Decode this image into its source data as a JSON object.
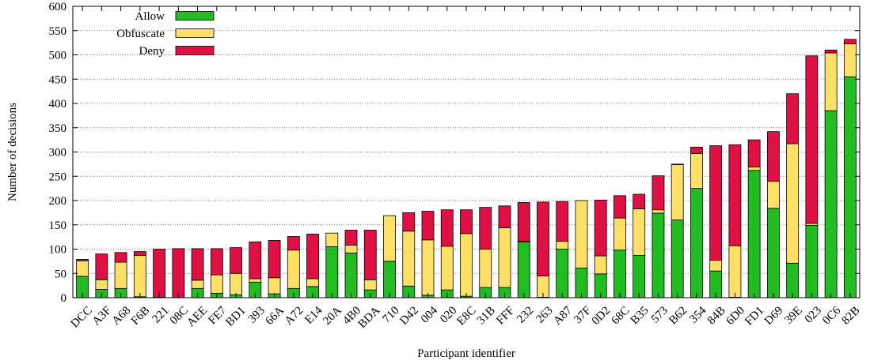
{
  "chart_data": {
    "type": "bar",
    "stacked": true,
    "title": "",
    "xlabel": "Participant identifier",
    "ylabel": "Number of decisions",
    "ylim": [
      0,
      600
    ],
    "yticks": [
      0,
      50,
      100,
      150,
      200,
      250,
      300,
      350,
      400,
      450,
      500,
      550,
      600
    ],
    "grid": "horizontal dotted",
    "legend_position": "top-left",
    "categories": [
      "DCC",
      "A3F",
      "A68",
      "F6B",
      "221",
      "08C",
      "AEE",
      "FE7",
      "BD1",
      "393",
      "66A",
      "A72",
      "E14",
      "20A",
      "4B0",
      "BDA",
      "710",
      "D42",
      "004",
      "020",
      "E8C",
      "31B",
      "FFF",
      "232",
      "263",
      "A87",
      "37F",
      "0D2",
      "68C",
      "B35",
      "573",
      "B62",
      "354",
      "84B",
      "6D0",
      "FD1",
      "D69",
      "39E",
      "023",
      "0C6",
      "82B"
    ],
    "series": [
      {
        "name": "Allow",
        "color": "#22bb22",
        "values": [
          44,
          17,
          19,
          2,
          1,
          0,
          19,
          9,
          6,
          32,
          8,
          19,
          23,
          105,
          92,
          16,
          75,
          24,
          5,
          16,
          3,
          21,
          21,
          115,
          1,
          100,
          61,
          49,
          98,
          87,
          174,
          160,
          225,
          55,
          1,
          262,
          184,
          71,
          149,
          385,
          455
        ]
      },
      {
        "name": "Obfuscate",
        "color": "#ffe066",
        "values": [
          32,
          20,
          54,
          85,
          0,
          0,
          17,
          38,
          44,
          7,
          33,
          79,
          16,
          28,
          16,
          21,
          94,
          113,
          114,
          90,
          129,
          79,
          123,
          1,
          44,
          16,
          139,
          37,
          66,
          96,
          7,
          114,
          72,
          22,
          106,
          7,
          56,
          246,
          4,
          119,
          68
        ]
      },
      {
        "name": "Deny",
        "color": "#dd1144",
        "values": [
          3,
          53,
          20,
          8,
          99,
          101,
          65,
          54,
          53,
          76,
          77,
          28,
          92,
          0,
          31,
          102,
          0,
          38,
          59,
          75,
          49,
          86,
          45,
          80,
          152,
          82,
          0,
          115,
          46,
          30,
          70,
          1,
          13,
          236,
          208,
          56,
          102,
          103,
          345,
          6,
          9
        ]
      }
    ]
  }
}
